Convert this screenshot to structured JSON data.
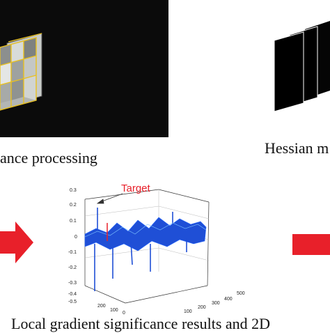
{
  "captions": {
    "left": "ance processing",
    "right": "Hessian m",
    "bottom": "Local gradient significance results and 2D"
  },
  "plot": {
    "target_label": "Target",
    "z_ticks": [
      "0.3",
      "0.2",
      "0.1",
      "0",
      "-0.1",
      "-0.2",
      "-0.3",
      "-0.4",
      "-0.5"
    ],
    "x_ticks": [
      "200",
      "100",
      "0"
    ],
    "y_ticks": [
      "500",
      "400",
      "300",
      "200",
      "100"
    ]
  },
  "colors": {
    "arrow": "#e8202a",
    "surface": "#1f4fd6",
    "panel": "#0b0b0b"
  }
}
